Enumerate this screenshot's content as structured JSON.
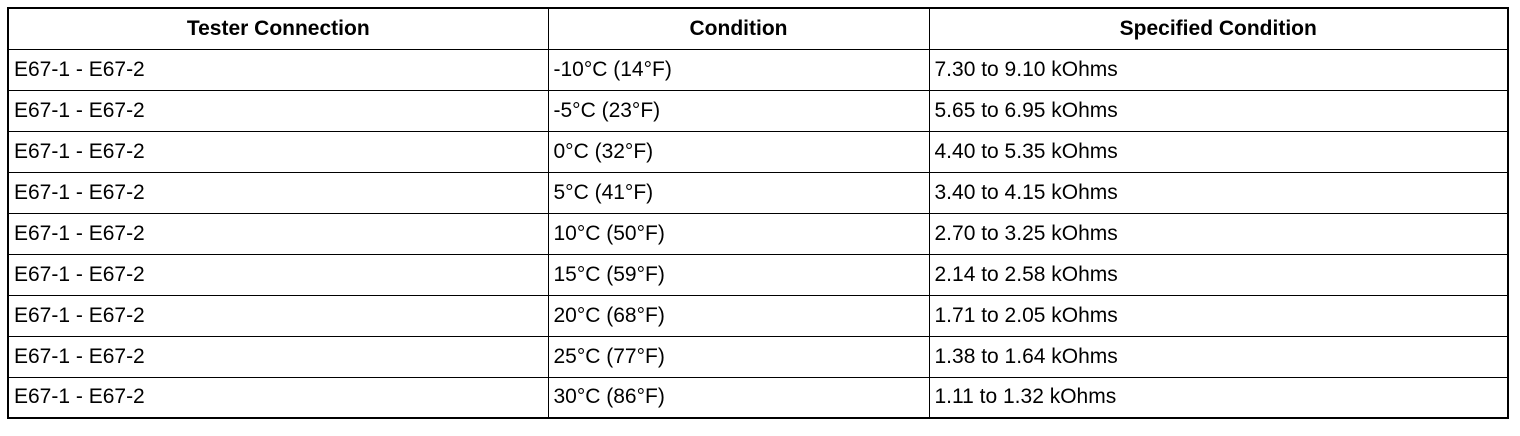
{
  "table": {
    "header": [
      "Tester Connection",
      "Condition",
      "Specified Condition"
    ],
    "rows": [
      [
        "E67-1 - E67-2",
        "-10°C (14°F)",
        "7.30 to 9.10 kOhms"
      ],
      [
        "E67-1 - E67-2",
        "-5°C (23°F)",
        "5.65 to 6.95 kOhms"
      ],
      [
        "E67-1 - E67-2",
        "0°C (32°F)",
        "4.40 to 5.35 kOhms"
      ],
      [
        "E67-1 - E67-2",
        "5°C (41°F)",
        "3.40 to 4.15 kOhms"
      ],
      [
        "E67-1 - E67-2",
        "10°C (50°F)",
        "2.70 to 3.25 kOhms"
      ],
      [
        "E67-1 - E67-2",
        "15°C (59°F)",
        "2.14 to 2.58 kOhms"
      ],
      [
        "E67-1 - E67-2",
        "20°C (68°F)",
        "1.71 to 2.05 kOhms"
      ],
      [
        "E67-1 - E67-2",
        "25°C (77°F)",
        "1.38 to 1.64 kOhms"
      ],
      [
        "E67-1 - E67-2",
        "30°C (86°F)",
        "1.11 to 1.32 kOhms"
      ]
    ]
  }
}
